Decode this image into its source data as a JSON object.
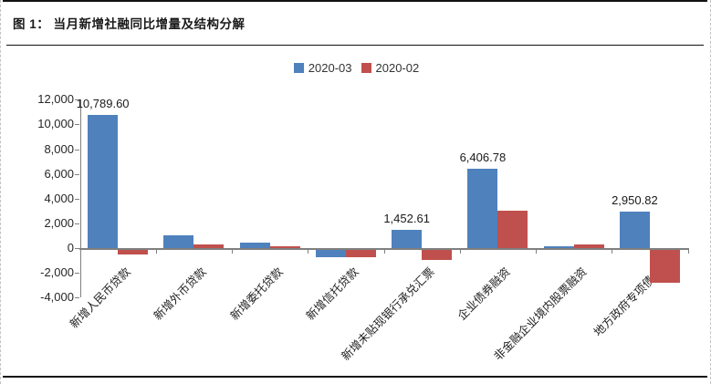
{
  "figure": {
    "title": "图 1： 当月新增社融同比增量及结构分解"
  },
  "chart_data": {
    "type": "bar",
    "title": "当月新增社融同比增量及结构分解",
    "categories": [
      "新增人民币贷款",
      "新增外币贷款",
      "新增委托贷款",
      "新增信托贷款",
      "新增未贴现银行承兑汇票",
      "企业债券融资",
      "非金融企业境内股票融资",
      "地方政府专项债券"
    ],
    "series": [
      {
        "name": "2020-03",
        "color": "#4F81BD",
        "values": [
          10789.6,
          1060,
          450,
          -660,
          1452.61,
          6406.78,
          180,
          2950.82
        ],
        "data_labels": [
          "10,789.60",
          null,
          null,
          null,
          "1,452.61",
          "6,406.78",
          null,
          "2,950.82"
        ]
      },
      {
        "name": "2020-02",
        "color": "#C0504D",
        "values": [
          -440,
          270,
          150,
          -650,
          -900,
          3020,
          320,
          -2700
        ],
        "data_labels": [
          null,
          null,
          null,
          null,
          null,
          null,
          null,
          null
        ]
      }
    ],
    "y_axis": {
      "min": -4000,
      "max": 12000,
      "step": 2000,
      "tick_labels": [
        "12,000",
        "10,000",
        "8,000",
        "6,000",
        "4,000",
        "2,000",
        "0",
        "-2,000",
        "-4,000"
      ]
    },
    "legend": {
      "position": "top-center",
      "entries": [
        "2020-03",
        "2020-02"
      ]
    },
    "grid": false,
    "axis_color": "#808080",
    "text_color": "#262626"
  }
}
